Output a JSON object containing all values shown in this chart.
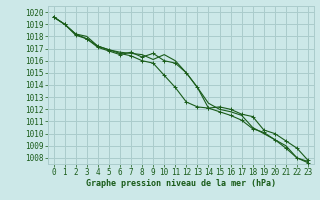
{
  "background_color": "#cce8e8",
  "grid_color": "#aacccc",
  "line_color": "#1a5c1a",
  "xlabel": "Graphe pression niveau de la mer (hPa)",
  "xlabel_fontsize": 6.0,
  "tick_fontsize": 5.5,
  "xlim": [
    -0.5,
    23.5
  ],
  "ylim": [
    1007.5,
    1020.5
  ],
  "yticks": [
    1008,
    1009,
    1010,
    1011,
    1012,
    1013,
    1014,
    1015,
    1016,
    1017,
    1018,
    1019,
    1020
  ],
  "xticks": [
    0,
    1,
    2,
    3,
    4,
    5,
    6,
    7,
    8,
    9,
    10,
    11,
    12,
    13,
    14,
    15,
    16,
    17,
    18,
    19,
    20,
    21,
    22,
    23
  ],
  "series1_x": [
    0,
    1,
    2,
    3,
    4,
    5,
    6,
    7,
    8,
    9,
    10,
    11,
    12,
    13,
    14,
    15,
    16,
    17,
    18,
    19,
    20,
    21,
    22,
    23
  ],
  "series1_y": [
    1019.6,
    1019.0,
    1018.2,
    1018.0,
    1017.2,
    1016.9,
    1016.7,
    1016.6,
    1016.5,
    1016.1,
    1016.5,
    1016.0,
    1015.0,
    1013.8,
    1012.5,
    1012.0,
    1011.8,
    1011.5,
    1010.5,
    1010.0,
    1009.5,
    1009.0,
    1008.0,
    1007.7
  ],
  "series2_x": [
    0,
    1,
    2,
    3,
    4,
    5,
    6,
    7,
    8,
    9,
    10,
    11,
    12,
    13,
    14,
    15,
    16,
    17,
    18,
    19,
    20,
    21,
    22,
    23
  ],
  "series2_y": [
    1019.6,
    1019.0,
    1018.2,
    1017.8,
    1017.2,
    1016.9,
    1016.6,
    1016.4,
    1016.0,
    1015.8,
    1014.8,
    1013.8,
    1012.6,
    1012.2,
    1012.1,
    1011.8,
    1011.5,
    1011.1,
    1010.4,
    1010.1,
    1009.5,
    1008.8,
    1008.0,
    1007.6
  ],
  "series3_x": [
    0,
    1,
    2,
    3,
    4,
    5,
    6,
    7,
    8,
    9,
    10,
    11,
    12,
    13,
    14,
    15,
    16,
    17,
    18,
    19,
    20,
    21,
    22,
    23
  ],
  "series3_y": [
    1019.6,
    1019.0,
    1018.1,
    1017.8,
    1017.1,
    1016.8,
    1016.5,
    1016.7,
    1016.3,
    1016.6,
    1016.0,
    1015.8,
    1015.0,
    1013.8,
    1012.1,
    1012.2,
    1012.0,
    1011.6,
    1011.4,
    1010.3,
    1010.0,
    1009.4,
    1008.8,
    1007.8
  ]
}
